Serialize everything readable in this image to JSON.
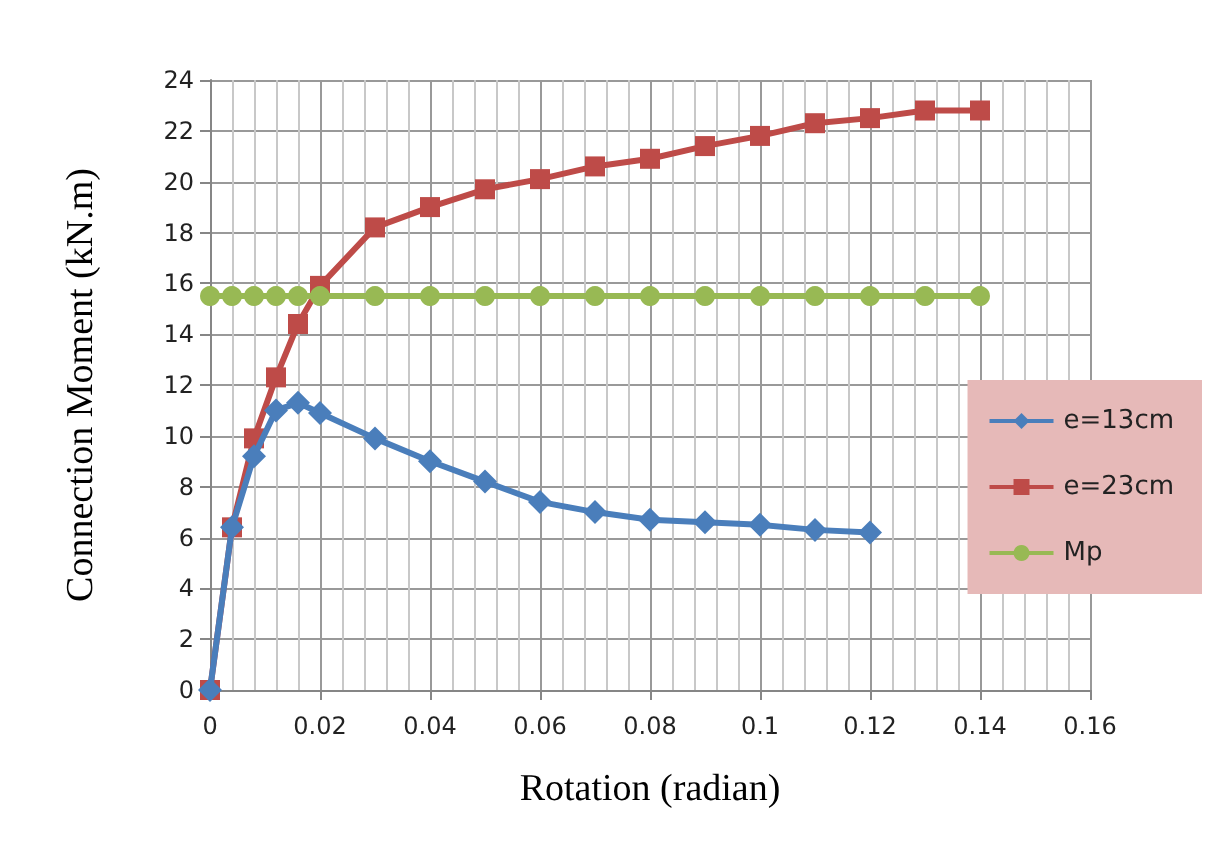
{
  "chart_data": {
    "type": "line",
    "xlabel": "Rotation (radian)",
    "ylabel": "Connection Moment (kN.m)",
    "xlim": [
      0,
      0.16
    ],
    "xticks": [
      0,
      0.02,
      0.04,
      0.06,
      0.08,
      0.1,
      0.12,
      0.14,
      0.16
    ],
    "ylim": [
      0,
      24
    ],
    "yticks": [
      0,
      2,
      4,
      6,
      8,
      10,
      12,
      14,
      16,
      18,
      20,
      22,
      24
    ],
    "grid": true,
    "legend": "right",
    "line_style": "solid",
    "series": [
      {
        "name": "e=13cm",
        "color": "#4a7ebb",
        "marker": "diamond",
        "x": [
          0,
          0.004,
          0.008,
          0.012,
          0.016,
          0.02,
          0.03,
          0.04,
          0.05,
          0.06,
          0.07,
          0.08,
          0.09,
          0.1,
          0.11,
          0.12
        ],
        "values": [
          0,
          6.4,
          9.2,
          11.0,
          11.3,
          10.9,
          9.9,
          9.0,
          8.2,
          7.4,
          7.0,
          6.7,
          6.6,
          6.5,
          6.3,
          6.2
        ]
      },
      {
        "name": "e=23cm",
        "color": "#be4b48",
        "marker": "square",
        "x": [
          0,
          0.004,
          0.008,
          0.012,
          0.016,
          0.02,
          0.03,
          0.04,
          0.05,
          0.06,
          0.07,
          0.08,
          0.09,
          0.1,
          0.11,
          0.12,
          0.13,
          0.14
        ],
        "values": [
          0,
          6.4,
          9.9,
          12.3,
          14.4,
          15.9,
          18.2,
          19.0,
          19.7,
          20.1,
          20.6,
          20.9,
          21.4,
          21.8,
          22.3,
          22.5,
          22.8,
          22.8
        ]
      },
      {
        "name": "Mp",
        "color": "#98b954",
        "marker": "circle",
        "x": [
          0,
          0.004,
          0.008,
          0.012,
          0.016,
          0.02,
          0.03,
          0.04,
          0.05,
          0.06,
          0.07,
          0.08,
          0.09,
          0.1,
          0.11,
          0.12,
          0.13,
          0.14
        ],
        "values": [
          15.5,
          15.5,
          15.5,
          15.5,
          15.5,
          15.5,
          15.5,
          15.5,
          15.5,
          15.5,
          15.5,
          15.5,
          15.5,
          15.5,
          15.5,
          15.5,
          15.5,
          15.5
        ]
      }
    ]
  }
}
